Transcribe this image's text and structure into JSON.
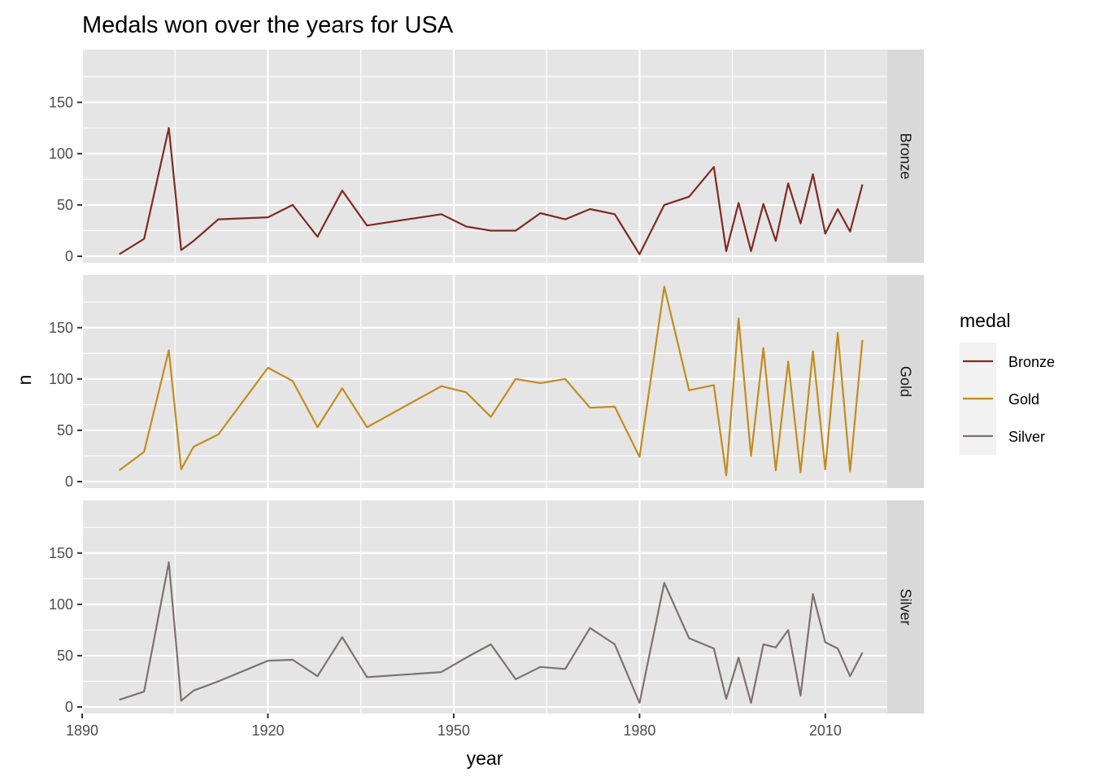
{
  "chart_data": {
    "type": "line",
    "title": "Medals won over the years for USA",
    "xlabel": "year",
    "ylabel": "n",
    "xlim": [
      1890,
      2020
    ],
    "ylim": [
      0,
      195
    ],
    "x_ticks": [
      1890,
      1920,
      1950,
      1980,
      2010
    ],
    "y_ticks": [
      0,
      50,
      100,
      150
    ],
    "facet_by": "medal",
    "grid": true,
    "legend": {
      "title": "medal",
      "placement": "right"
    },
    "series": [
      {
        "name": "Bronze",
        "color": "#7f2b22",
        "x": [
          1896,
          1900,
          1904,
          1906,
          1908,
          1912,
          1920,
          1924,
          1928,
          1932,
          1936,
          1948,
          1952,
          1956,
          1960,
          1964,
          1968,
          1972,
          1976,
          1980,
          1984,
          1988,
          1992,
          1994,
          1996,
          1998,
          2000,
          2002,
          2004,
          2006,
          2008,
          2010,
          2012,
          2014,
          2016
        ],
        "values": [
          2,
          17,
          125,
          6,
          15,
          36,
          38,
          50,
          19,
          64,
          30,
          41,
          29,
          25,
          25,
          42,
          36,
          46,
          41,
          2,
          50,
          58,
          87,
          5,
          52,
          5,
          51,
          15,
          71,
          32,
          80,
          22,
          46,
          24,
          70
        ]
      },
      {
        "name": "Gold",
        "color": "#c38c1d",
        "x": [
          1896,
          1900,
          1904,
          1906,
          1908,
          1912,
          1920,
          1924,
          1928,
          1932,
          1936,
          1948,
          1952,
          1956,
          1960,
          1964,
          1968,
          1972,
          1976,
          1980,
          1984,
          1988,
          1992,
          1994,
          1996,
          1998,
          2000,
          2002,
          2004,
          2006,
          2008,
          2010,
          2012,
          2014,
          2016
        ],
        "values": [
          11,
          29,
          128,
          12,
          34,
          46,
          111,
          98,
          53,
          91,
          53,
          93,
          87,
          63,
          100,
          96,
          100,
          72,
          73,
          24,
          190,
          89,
          94,
          6,
          159,
          25,
          130,
          11,
          117,
          9,
          127,
          12,
          145,
          10,
          138
        ]
      },
      {
        "name": "Silver",
        "color": "#7b7371",
        "x": [
          1896,
          1900,
          1904,
          1906,
          1908,
          1912,
          1920,
          1924,
          1928,
          1932,
          1936,
          1948,
          1952,
          1956,
          1960,
          1964,
          1968,
          1972,
          1976,
          1980,
          1984,
          1988,
          1992,
          1994,
          1996,
          1998,
          2000,
          2002,
          2004,
          2006,
          2008,
          2010,
          2012,
          2014,
          2016
        ],
        "values": [
          7,
          15,
          141,
          6,
          16,
          25,
          45,
          46,
          30,
          68,
          29,
          34,
          48,
          61,
          27,
          39,
          37,
          77,
          61,
          4,
          121,
          67,
          57,
          8,
          48,
          4,
          61,
          58,
          75,
          11,
          110,
          63,
          57,
          30,
          53
        ]
      }
    ]
  }
}
